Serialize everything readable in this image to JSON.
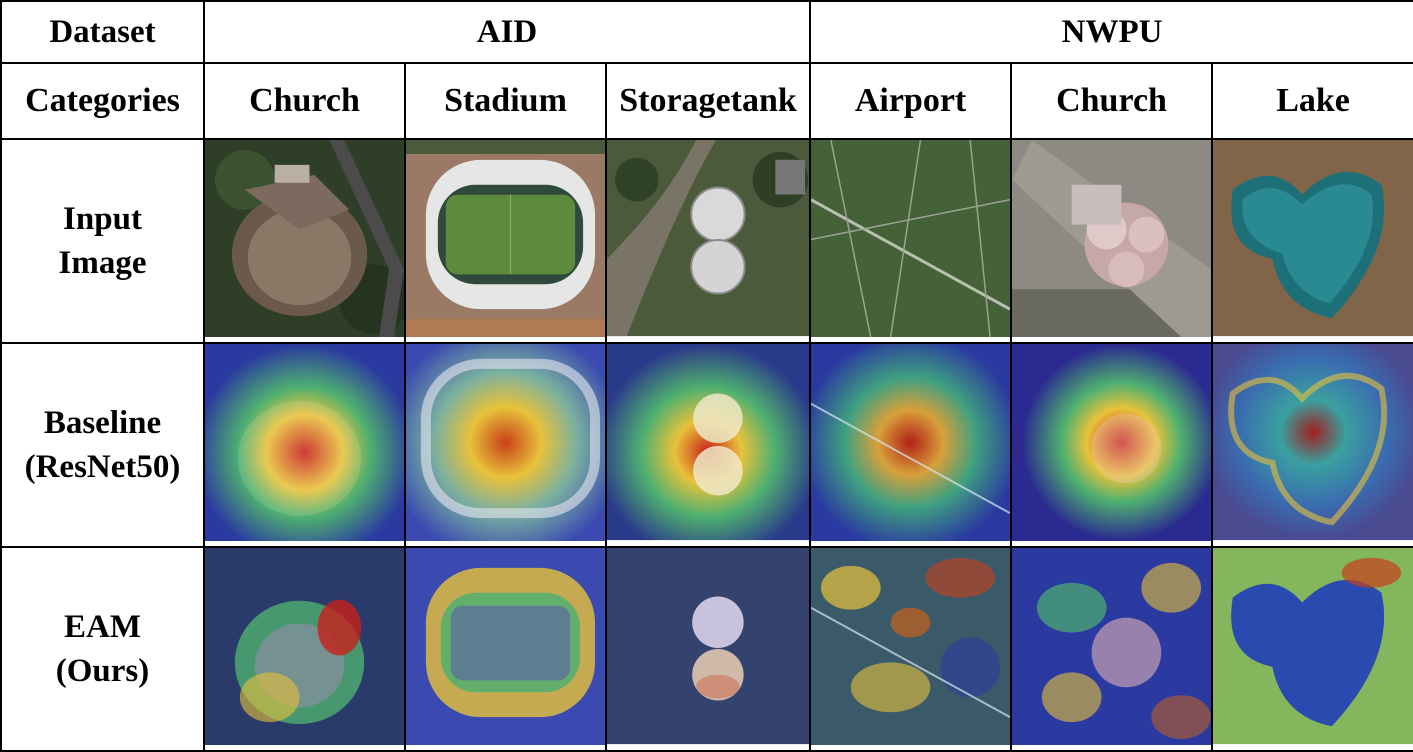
{
  "header": {
    "dataset_label": "Dataset",
    "categories_label": "Categories",
    "datasets": [
      "AID",
      "NWPU"
    ],
    "categories": [
      "Church",
      "Stadium",
      "Storagetank",
      "Airport",
      "Church",
      "Lake"
    ]
  },
  "rows": [
    {
      "label_line1": "Input",
      "label_line2": "Image"
    },
    {
      "label_line1": "Baseline",
      "label_line2": "(ResNet50)"
    },
    {
      "label_line1": "EAM",
      "label_line2": "(Ours)"
    }
  ],
  "colors": {
    "border": "#000000",
    "heat_hot": "#c8201a",
    "heat_warm": "#e8c23a",
    "heat_mid": "#4fb070",
    "heat_cold": "#2a3aa0"
  }
}
